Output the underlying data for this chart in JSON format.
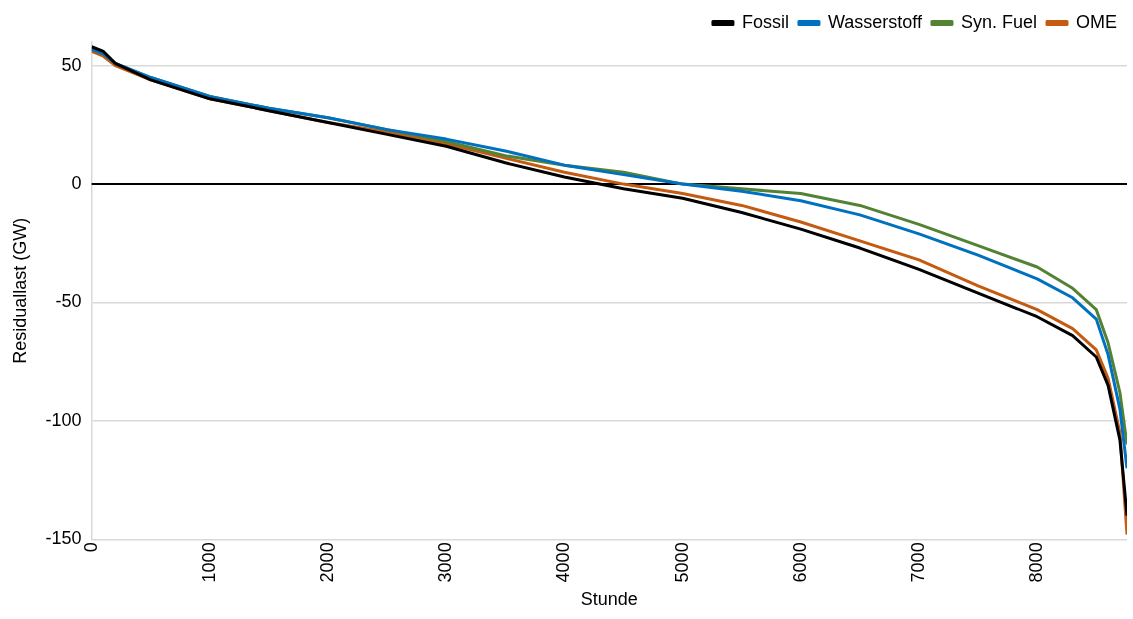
{
  "chart_data": {
    "type": "line",
    "xlabel": "Stunde",
    "ylabel": "Residuallast (GW)",
    "x": [
      0,
      100,
      200,
      500,
      1000,
      1500,
      2000,
      2500,
      3000,
      3500,
      4000,
      4500,
      5000,
      5500,
      6000,
      6500,
      7000,
      7500,
      8000,
      8300,
      8500,
      8600,
      8700,
      8760
    ],
    "series": [
      {
        "name": "Fossil",
        "color": "#000000",
        "values": [
          58,
          56,
          51,
          44,
          36,
          31,
          26,
          21,
          16,
          9,
          3,
          -2,
          -6,
          -12,
          -19,
          -27,
          -36,
          -46,
          -56,
          -64,
          -73,
          -85,
          -108,
          -140
        ]
      },
      {
        "name": "Wasserstoff",
        "color": "#0070c0",
        "values": [
          57,
          55,
          51,
          45,
          37,
          32,
          28,
          23,
          19,
          14,
          8,
          4,
          0,
          -3,
          -7,
          -13,
          -21,
          -30,
          -40,
          -48,
          -57,
          -72,
          -95,
          -120
        ]
      },
      {
        "name": "Syn. Fuel",
        "color": "#548235",
        "values": [
          57,
          55,
          51,
          45,
          37,
          32,
          28,
          23,
          18,
          12,
          8,
          5,
          0,
          -2,
          -4,
          -9,
          -17,
          -26,
          -35,
          -44,
          -53,
          -67,
          -88,
          -110
        ]
      },
      {
        "name": "OME",
        "color": "#c55a11",
        "values": [
          56,
          54,
          50,
          44,
          36,
          31,
          26,
          22,
          17,
          11,
          5,
          0,
          -4,
          -9,
          -16,
          -24,
          -32,
          -43,
          -53,
          -61,
          -70,
          -82,
          -105,
          -148
        ]
      }
    ],
    "xlim": [
      0,
      8760
    ],
    "xticks": [
      0,
      1000,
      2000,
      3000,
      4000,
      5000,
      6000,
      7000,
      8000
    ],
    "ylim": [
      -150,
      60
    ],
    "yticks": [
      -150,
      -100,
      -50,
      0,
      50
    ],
    "ref_lines": [
      {
        "axis": "y",
        "value": 0,
        "color": "#000000"
      }
    ],
    "grid": "y",
    "legend": "top right",
    "marker": "none",
    "line_style": "solid"
  }
}
